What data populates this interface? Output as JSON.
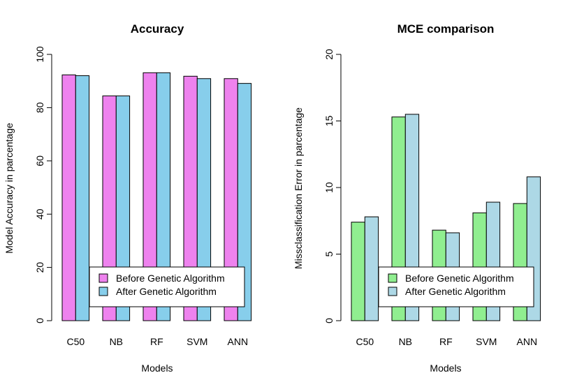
{
  "chart_data": [
    {
      "type": "bar",
      "title": "Accuracy",
      "xlabel": "Models",
      "ylabel": "Model Accuracy in parcentage",
      "ylim": [
        0,
        100
      ],
      "yticks": [
        "0",
        "20",
        "40",
        "60",
        "80",
        "100"
      ],
      "categories": [
        "C50",
        "NB",
        "RF",
        "SVM",
        "ANN"
      ],
      "series": [
        {
          "name": "Before Genetic Algorithm",
          "color": "#EE82EE",
          "values": [
            92.3,
            84.4,
            93.1,
            91.8,
            90.9
          ]
        },
        {
          "name": "After Genetic Algorithm",
          "color": "#87CEEB",
          "values": [
            92.0,
            84.4,
            93.1,
            90.9,
            89.1
          ]
        }
      ],
      "legend": "bottom-right",
      "grid": false
    },
    {
      "type": "bar",
      "title": "MCE comparison",
      "xlabel": "Models",
      "ylabel": "Missclassification Error in parcentage",
      "ylim": [
        0,
        20
      ],
      "yticks": [
        "0",
        "5",
        "10",
        "15",
        "20"
      ],
      "categories": [
        "C50",
        "NB",
        "RF",
        "SVM",
        "ANN"
      ],
      "series": [
        {
          "name": "Before Genetic Algorithm",
          "color": "#90EE90",
          "values": [
            7.4,
            15.3,
            6.8,
            8.1,
            8.8
          ]
        },
        {
          "name": "After Genetic Algorithm",
          "color": "#ADD8E6",
          "values": [
            7.8,
            15.5,
            6.6,
            8.9,
            10.8
          ]
        }
      ],
      "legend": "bottom-right",
      "grid": false
    }
  ]
}
